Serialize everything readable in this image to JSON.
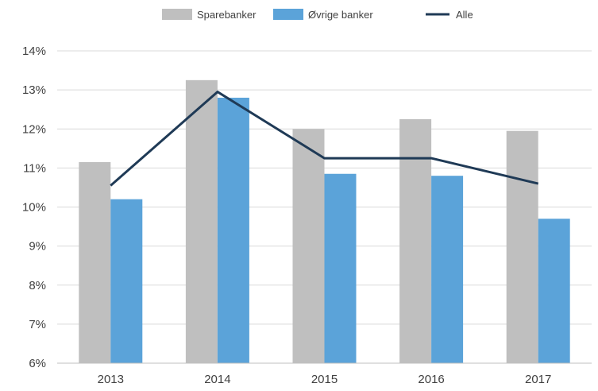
{
  "chart_data": {
    "type": "bar",
    "categories": [
      "2013",
      "2014",
      "2015",
      "2016",
      "2017"
    ],
    "series": [
      {
        "name": "Sparebanker",
        "kind": "bar",
        "color": "#bfbfbf",
        "values": [
          11.15,
          13.25,
          12.0,
          12.25,
          11.95
        ]
      },
      {
        "name": "Øvrige banker",
        "kind": "bar",
        "color": "#5ba3d9",
        "values": [
          10.2,
          12.8,
          10.85,
          10.8,
          9.7
        ]
      },
      {
        "name": "Alle",
        "kind": "line",
        "color": "#1f3a56",
        "values": [
          10.55,
          12.95,
          11.25,
          11.25,
          10.6
        ]
      }
    ],
    "ylim": [
      6,
      14
    ],
    "yticks": [
      6,
      7,
      8,
      9,
      10,
      11,
      12,
      13,
      14
    ],
    "ytick_labels": [
      "6%",
      "7%",
      "8%",
      "9%",
      "10%",
      "11%",
      "12%",
      "13%",
      "14%"
    ],
    "grid": true,
    "legend": "top-center",
    "title": "",
    "xlabel": "",
    "ylabel": ""
  }
}
